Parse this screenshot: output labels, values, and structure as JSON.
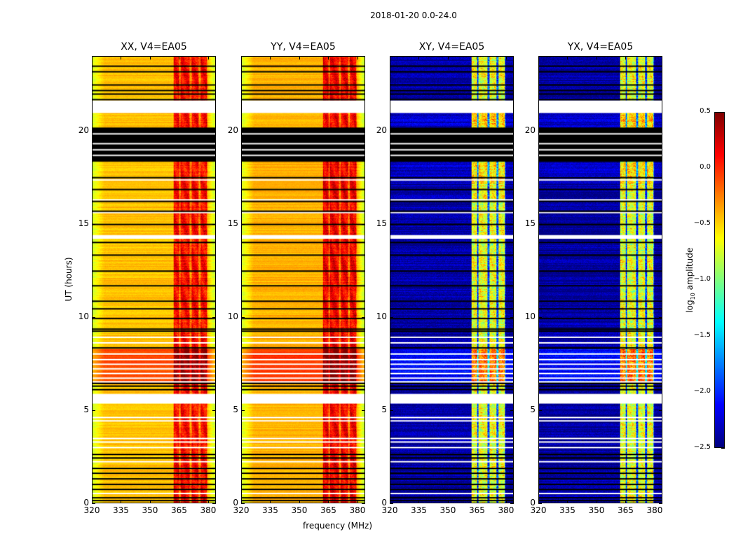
{
  "figure": {
    "suptitle": "2018-01-20 0.0-24.0",
    "xlabel": "frequency (MHz)",
    "ylabel": "UT (hours)"
  },
  "chart_data": {
    "type": "heatmap",
    "title": "2018-01-20 0.0-24.0",
    "xlabel": "frequency (MHz)",
    "ylabel": "UT (hours)",
    "xlim": [
      320,
      384
    ],
    "ylim": [
      0,
      24
    ],
    "xticks": [
      "320",
      "335",
      "350",
      "365",
      "380"
    ],
    "yticks": [
      "0",
      "5",
      "10",
      "15",
      "20"
    ],
    "colormap": "jet",
    "panels": [
      {
        "title": "XX, V4=EA05",
        "pol": "parallel",
        "offband_log_amp": -0.45,
        "inband_log_amp": 0.1,
        "edge_log_amp": -0.75
      },
      {
        "title": "YY, V4=EA05",
        "pol": "parallel",
        "offband_log_amp": -0.4,
        "inband_log_amp": 0.15,
        "edge_log_amp": -0.75
      },
      {
        "title": "XY, V4=EA05",
        "pol": "cross",
        "offband_log_amp": -2.4,
        "inband_log_amp": -0.7,
        "edge_log_amp": -2.45
      },
      {
        "title": "YX, V4=EA05",
        "pol": "cross",
        "offband_log_amp": -2.4,
        "inband_log_amp": -0.7,
        "edge_log_amp": -2.45
      }
    ],
    "bright_band_mhz": [
      362,
      380
    ],
    "subband_gaps_mhz": [
      365.3,
      370.9,
      375.6,
      380.0
    ],
    "flagged_black_blocks_hours": [
      [
        18.35,
        20.19
      ]
    ],
    "flagged_white_blocks_hours": [
      [
        20.97,
        21.65
      ],
      [
        5.33,
        5.85
      ],
      [
        14.2,
        14.4
      ]
    ],
    "black_lines_hours": [
      23.49,
      23.19,
      22.48,
      22.18,
      21.99,
      21.69,
      17.49,
      16.85,
      16.21,
      15.68,
      14.97,
      14.0,
      13.32,
      12.46,
      11.67,
      10.84,
      10.43,
      9.91,
      9.34,
      9.23,
      8.33,
      6.42,
      6.27,
      6.08,
      2.59,
      2.4,
      1.84,
      1.58,
      1.28,
      0.98,
      0.71,
      0.26,
      0.11
    ],
    "white_lines_hours": [
      19.85,
      19.32,
      18.99,
      18.69,
      17.37,
      16.29,
      15.61,
      8.9,
      8.6,
      8.0,
      7.7,
      7.45,
      7.2,
      6.95,
      6.7,
      6.5,
      4.58,
      4.4,
      3.45,
      3.26,
      2.96,
      2.2,
      0.49
    ],
    "enhanced_hours": [
      [
        6.4,
        8.3
      ]
    ],
    "colorbar": {
      "label": "log10 amplitude",
      "range": [
        -2.5,
        0.5
      ],
      "ticks": [
        "0.5",
        "0.0",
        "−0.5",
        "−1.0",
        "−1.5",
        "−2.0",
        "−2.5"
      ]
    }
  }
}
